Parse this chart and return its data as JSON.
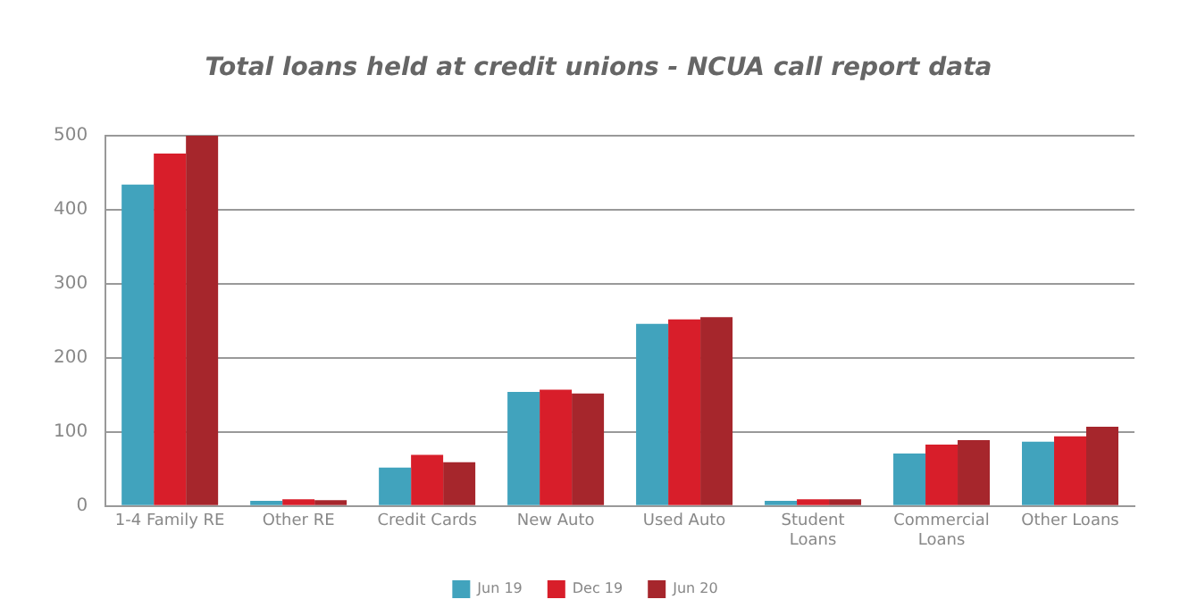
{
  "chart_data": {
    "type": "bar",
    "title": "Total loans held at credit unions - NCUA call report data",
    "categories": [
      "1-4 Family RE",
      "Other RE",
      "Credit Cards",
      "New Auto",
      "Used Auto",
      "Student Loans",
      "Commercial Loans",
      "Other Loans"
    ],
    "series": [
      {
        "name": "Jun 19",
        "color": "#41a3bd",
        "values": [
          434,
          7,
          52,
          154,
          246,
          7,
          71,
          87
        ]
      },
      {
        "name": "Dec 19",
        "color": "#d81e2a",
        "values": [
          476,
          9,
          69,
          157,
          252,
          9,
          83,
          94
        ]
      },
      {
        "name": "Jun 20",
        "color": "#a6262c",
        "values": [
          500,
          8,
          59,
          152,
          255,
          9,
          89,
          107
        ]
      }
    ],
    "ylim": [
      0,
      500
    ],
    "yticks": [
      0,
      100,
      200,
      300,
      400,
      500
    ],
    "grid": "y",
    "legend": "bottom"
  }
}
